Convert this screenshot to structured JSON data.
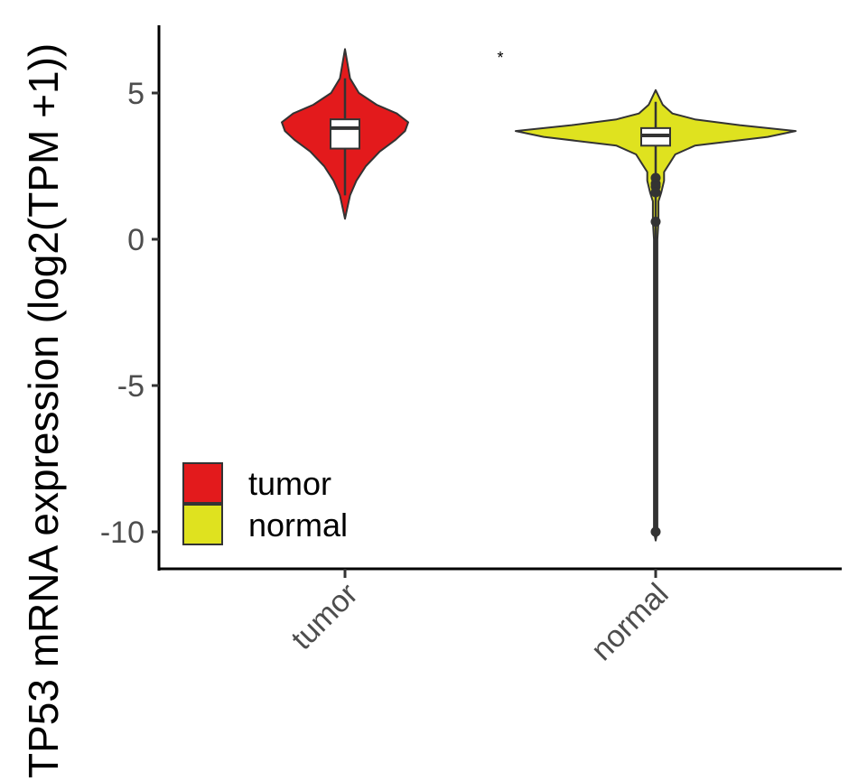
{
  "chart_data": {
    "type": "violin",
    "ylabel": "TP53 mRNA expression (log2(TPM +1))",
    "categories": [
      "tumor",
      "normal"
    ],
    "yticks": [
      5,
      0,
      -5,
      -10
    ],
    "ytick_labels": [
      "5",
      "0",
      "-5",
      "-10"
    ],
    "ylim": [
      -11.2,
      7.3
    ],
    "significance": "*",
    "legend": {
      "position": "bottom-left",
      "entries": [
        "tumor",
        "normal"
      ]
    },
    "series": [
      {
        "name": "tumor",
        "color": "#e31a1c",
        "min": 0.7,
        "max": 6.5,
        "box": {
          "q1": 3.1,
          "median": 3.8,
          "q3": 4.1,
          "whisker_low": 1.5,
          "whisker_high": 5.5
        },
        "outliers": [],
        "density": [
          [
            0.7,
            0.0
          ],
          [
            1.0,
            0.03
          ],
          [
            1.5,
            0.08
          ],
          [
            2.0,
            0.18
          ],
          [
            2.5,
            0.33
          ],
          [
            3.0,
            0.55
          ],
          [
            3.4,
            0.8
          ],
          [
            3.7,
            0.95
          ],
          [
            4.0,
            1.0
          ],
          [
            4.3,
            0.82
          ],
          [
            4.6,
            0.5
          ],
          [
            5.0,
            0.22
          ],
          [
            5.5,
            0.08
          ],
          [
            6.0,
            0.04
          ],
          [
            6.5,
            0.0
          ]
        ]
      },
      {
        "name": "normal",
        "color": "#dfe21f",
        "min": -10.3,
        "max": 5.1,
        "box": {
          "q1": 3.2,
          "median": 3.55,
          "q3": 3.8,
          "whisker_low": 2.4,
          "whisker_high": 4.7
        },
        "outliers": [
          2.1,
          1.9,
          1.8,
          1.6,
          0.6,
          -10.0
        ],
        "density": [
          [
            -10.3,
            0.0
          ],
          [
            -10.0,
            0.012
          ],
          [
            -5.0,
            0.012
          ],
          [
            0.0,
            0.012
          ],
          [
            0.6,
            0.02
          ],
          [
            1.3,
            0.02
          ],
          [
            1.6,
            0.04
          ],
          [
            2.0,
            0.06
          ],
          [
            2.3,
            0.06
          ],
          [
            2.6,
            0.1
          ],
          [
            2.9,
            0.14
          ],
          [
            3.2,
            0.28
          ],
          [
            3.5,
            0.8
          ],
          [
            3.7,
            1.0
          ],
          [
            3.9,
            0.6
          ],
          [
            4.1,
            0.28
          ],
          [
            4.3,
            0.12
          ],
          [
            4.6,
            0.05
          ],
          [
            5.1,
            0.0
          ]
        ]
      }
    ]
  }
}
